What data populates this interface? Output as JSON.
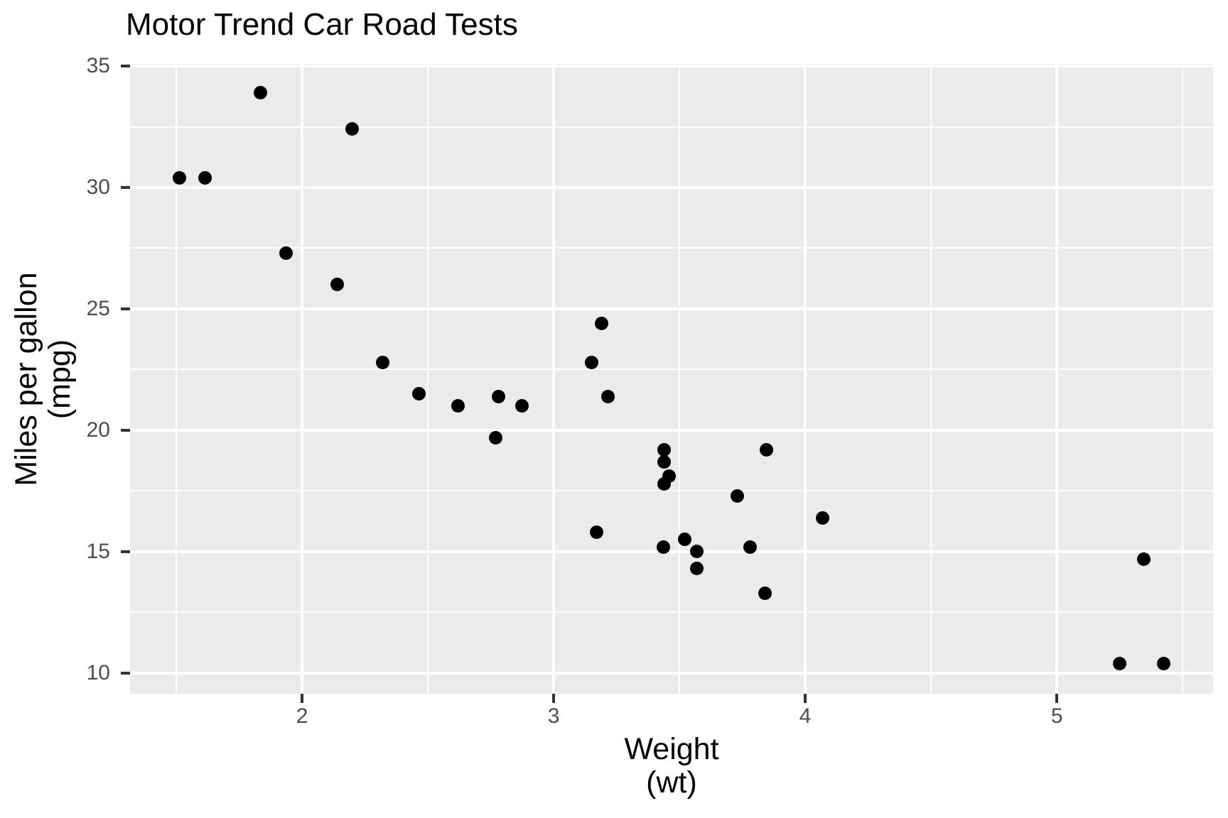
{
  "chart_data": {
    "type": "scatter",
    "title": "Motor Trend Car Road Tests",
    "xlabel": [
      "Weight",
      "(wt)"
    ],
    "ylabel": [
      "Miles per gallon",
      "(mpg)"
    ],
    "xlim": [
      1.316,
      5.621
    ],
    "ylim": [
      9.15,
      35.088
    ],
    "x_ticks": {
      "values": [
        2,
        3,
        4,
        5
      ],
      "labels": [
        "2",
        "3",
        "4",
        "5"
      ]
    },
    "y_ticks": {
      "values": [
        10,
        15,
        20,
        25,
        30,
        35
      ],
      "labels": [
        "10",
        "15",
        "20",
        "25",
        "30",
        "35"
      ]
    },
    "x_minor": [
      1.5,
      2.5,
      3.5,
      4.5,
      5.5
    ],
    "y_minor": [
      12.5,
      17.5,
      22.5,
      27.5,
      32.5
    ],
    "grid": "on",
    "legend": "none",
    "series_name": "cars",
    "points": [
      [
        2.62,
        21.0
      ],
      [
        2.875,
        21.0
      ],
      [
        2.32,
        22.8
      ],
      [
        3.215,
        21.4
      ],
      [
        3.44,
        18.7
      ],
      [
        3.46,
        18.1
      ],
      [
        3.57,
        14.3
      ],
      [
        3.19,
        24.4
      ],
      [
        3.15,
        22.8
      ],
      [
        3.44,
        19.2
      ],
      [
        3.44,
        17.8
      ],
      [
        4.07,
        16.4
      ],
      [
        3.73,
        17.3
      ],
      [
        3.78,
        15.2
      ],
      [
        5.25,
        10.4
      ],
      [
        5.424,
        10.4
      ],
      [
        5.345,
        14.7
      ],
      [
        2.2,
        32.4
      ],
      [
        1.615,
        30.4
      ],
      [
        1.835,
        33.9
      ],
      [
        2.465,
        21.5
      ],
      [
        3.52,
        15.5
      ],
      [
        3.435,
        15.2
      ],
      [
        3.84,
        13.3
      ],
      [
        3.845,
        19.2
      ],
      [
        1.935,
        27.3
      ],
      [
        2.14,
        26.0
      ],
      [
        1.513,
        30.4
      ],
      [
        3.17,
        15.8
      ],
      [
        2.77,
        19.7
      ],
      [
        3.57,
        15.0
      ],
      [
        2.78,
        21.4
      ]
    ],
    "colors": {
      "figure_background": "#FFFFFF",
      "panel_background": "#EBEBEB",
      "grid": "#FFFFFF",
      "point": "#000000",
      "tick_label": "#4D4D4D",
      "tick_mark": "#333333",
      "title": "#000000",
      "axis_title": "#000000"
    }
  }
}
